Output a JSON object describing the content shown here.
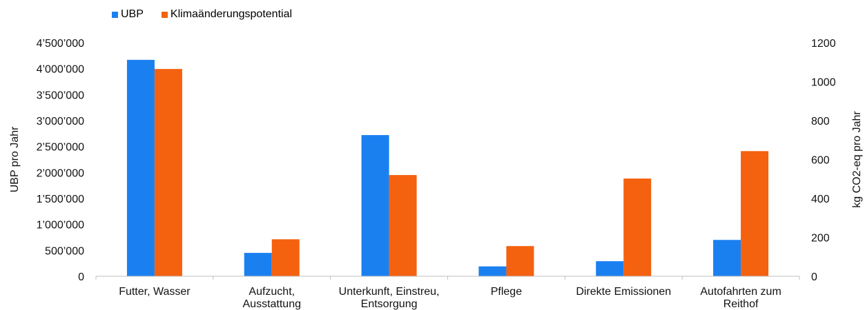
{
  "chart_data": {
    "type": "bar",
    "categories": [
      [
        "Futter, Wasser"
      ],
      [
        "Aufzucht,",
        "Ausstattung"
      ],
      [
        "Unterkunft, Einstreu,",
        "Entsorgung"
      ],
      [
        "Pflege"
      ],
      [
        "Direkte Emissionen"
      ],
      [
        "Autofahrten zum",
        "Reithof"
      ]
    ],
    "series": [
      {
        "name": "UBP",
        "axis": "left",
        "color": "#1a80f0",
        "values": [
          4170000,
          450000,
          2720000,
          190000,
          290000,
          700000
        ]
      },
      {
        "name": "Klimaänderungspotential",
        "axis": "right",
        "color": "#f4610f",
        "values": [
          1065,
          190,
          520,
          155,
          502,
          643
        ]
      }
    ],
    "ylabel": "UBP pro Jahr",
    "y2label": "kg CO2-eq pro Jahr",
    "ylim": [
      0,
      4500000
    ],
    "y2lim": [
      0,
      1200
    ],
    "yticks": [
      "0",
      "500’000",
      "1’000’000",
      "1’500’000",
      "2’000’000",
      "2’500’000",
      "3’000’000",
      "3’500’000",
      "4’000’000",
      "4’500’000"
    ],
    "y2ticks": [
      "0",
      "200",
      "400",
      "600",
      "800",
      "1000",
      "1200"
    ],
    "legend": "top-left",
    "grid": false
  }
}
